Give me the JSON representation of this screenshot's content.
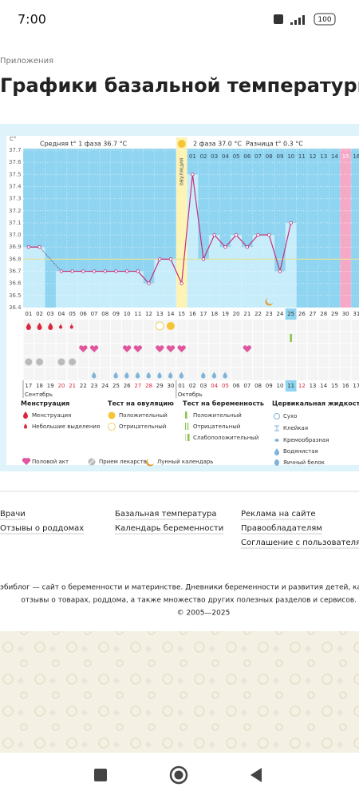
{
  "status": {
    "time": "7:00",
    "battery": "100"
  },
  "breadcrumb": "Приложения",
  "title": "Графики базальной температуры",
  "chart_data": {
    "type": "line",
    "y_label": "C°",
    "header": {
      "phase1": "Средняя t° 1 фаза 36.7 °C",
      "phase2": "2 фаза 37.0 °C",
      "diff": "Разница t° 0.3 °C"
    },
    "ovulation_label": "овуляция",
    "ovulation_index": 14,
    "pink_index": 29,
    "highlight_index": 24,
    "categories": [
      "01",
      "02",
      "03",
      "04",
      "05",
      "06",
      "07",
      "08",
      "09",
      "10",
      "11",
      "12",
      "13",
      "14",
      "15",
      "16",
      "17",
      "18",
      "19",
      "20",
      "21",
      "22",
      "23",
      "24",
      "25",
      "26",
      "27",
      "28",
      "29",
      "30",
      "31"
    ],
    "phase2_start": 15,
    "phase2_days": [
      "01",
      "02",
      "03",
      "04",
      "05",
      "06",
      "07",
      "08",
      "09",
      "10",
      "11",
      "12",
      "13",
      "14",
      "15",
      "16"
    ],
    "dates": [
      "17",
      "18",
      "19",
      "20",
      "21",
      "22",
      "23",
      "24",
      "25",
      "26",
      "27",
      "28",
      "29",
      "30",
      "01",
      "02",
      "03",
      "04",
      "05",
      "06",
      "07",
      "08",
      "09",
      "10",
      "11",
      "12",
      "13",
      "14",
      "15",
      "16",
      "17"
    ],
    "red_dates": [
      3,
      4,
      10,
      11,
      17,
      18,
      25
    ],
    "months": [
      {
        "label": "Сентябрь",
        "index": 0
      },
      {
        "label": "Октябрь",
        "index": 14
      }
    ],
    "values": [
      36.9,
      36.9,
      null,
      36.7,
      36.7,
      36.7,
      36.7,
      36.7,
      36.7,
      36.7,
      36.7,
      36.6,
      36.8,
      36.8,
      36.6,
      37.5,
      36.8,
      37.0,
      36.9,
      37.0,
      36.9,
      37.0,
      37.0,
      36.7,
      37.1,
      null,
      null,
      null,
      null,
      null,
      null
    ],
    "coverline": 36.8,
    "line_color": "#c2307a",
    "ylim": [
      36.4,
      37.7
    ],
    "yticks": [
      36.4,
      36.5,
      36.6,
      36.7,
      36.8,
      36.9,
      {
        "value": 37,
        "label": "37.0"
      },
      37.1,
      37.2,
      37.3,
      37.4,
      37.5,
      37.6,
      37.7
    ],
    "symbols": {
      "menstruation": [
        0,
        1,
        2
      ],
      "light": [
        3,
        4
      ],
      "ov_negative": [
        12
      ],
      "ov_positive": [
        13
      ],
      "pregnancy": [
        24
      ],
      "sex": [
        5,
        6,
        9,
        10,
        12,
        13,
        14,
        20
      ],
      "pills": [
        0,
        1,
        3,
        4
      ],
      "fluid": [
        6,
        8,
        9,
        10,
        11,
        12,
        13,
        14,
        16,
        17,
        18
      ],
      "moon": [
        22
      ]
    },
    "legend": {
      "menstruation_title": "Менструация",
      "menstruation": "Менструация",
      "light": "Небольшие выделения",
      "ov_title": "Тест на овуляцию",
      "ov_positive": "Положительный",
      "ov_negative": "Отрицательный",
      "preg_title": "Тест на беременность",
      "preg_positive": "Положительный",
      "preg_negative": "Отрицательный",
      "preg_weak": "Слабоположительный",
      "fluid_title": "Цервикальная жидкость",
      "dry": "Сухо",
      "sticky": "Клейкая",
      "creamy": "Кремообразная",
      "watery": "Водянистая",
      "egg": "Яичный белок",
      "sex": "Половой акт",
      "pills": "Прием лекарств",
      "moon": "Лунный календарь"
    }
  },
  "links": [
    [
      "Врачи",
      "Отзывы о роддомах"
    ],
    [
      "Базальная температура",
      "Календарь беременности"
    ],
    [
      "Реклама на сайте",
      "Правообладателям",
      "Соглашение с пользователями"
    ]
  ],
  "about": [
    "эбиблог — сайт о беременности и материнстве. Дневники беременности и развития детей, календарь",
    "отзывы о товарах, роддома, а также множество других полезных разделов и сервисов.",
    "© 2005—2025"
  ]
}
